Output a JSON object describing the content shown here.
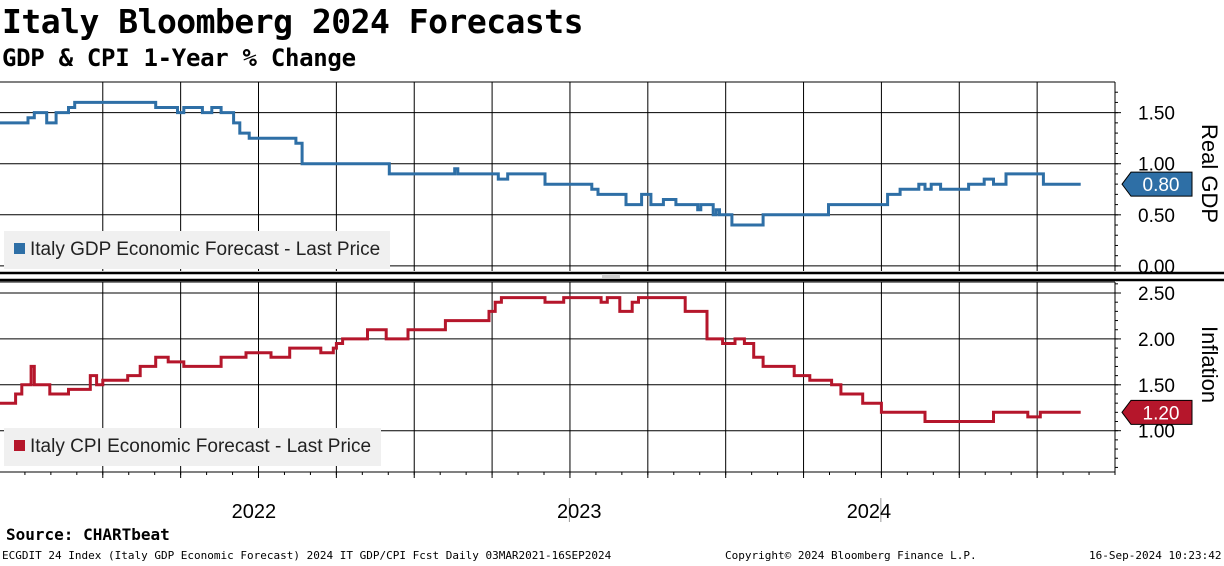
{
  "header": {
    "title": "Italy Bloomberg 2024 Forecasts",
    "subtitle": "GDP & CPI 1-Year % Change"
  },
  "source": "Source: CHARTbeat",
  "footer": {
    "left": "ECGDIT 24 Index (Italy GDP Economic Forecast) 2024 IT GDP/CPI Fcst  Daily 03MAR2021-16SEP2024",
    "center": "Copyright© 2024 Bloomberg Finance L.P.",
    "right": "16-Sep-2024 10:23:42"
  },
  "colors": {
    "gdp": "#2e6fa6",
    "cpi": "#b5162b"
  },
  "chart_data": [
    {
      "type": "line",
      "name": "gdp-panel",
      "axis_title": "Real GDP",
      "legend": "Italy GDP Economic Forecast - Last Price",
      "last_value_label": "0.80",
      "ylim": [
        -0.05,
        1.8
      ],
      "yticks": [
        0.0,
        0.5,
        1.0,
        1.5
      ],
      "ytick_labels": [
        "0.00",
        "0.50",
        "1.00",
        "1.50"
      ],
      "x_range": [
        2021.17,
        2024.75
      ],
      "x_labels": [
        {
          "label": "2022",
          "x": 2022.0
        },
        {
          "label": "2023",
          "x": 2023.0
        },
        {
          "label": "2024",
          "x": 2024.0
        }
      ],
      "series": [
        {
          "name": "Italy GDP Economic Forecast - Last Price",
          "x": [
            2021.17,
            2021.25,
            2021.26,
            2021.28,
            2021.32,
            2021.33,
            2021.35,
            2021.39,
            2021.41,
            2021.54,
            2021.64,
            2021.67,
            2021.72,
            2021.74,
            2021.76,
            2021.78,
            2021.82,
            2021.85,
            2021.88,
            2021.9,
            2021.92,
            2021.94,
            2021.97,
            2022.12,
            2022.14,
            2022.36,
            2022.4,
            2022.42,
            2022.6,
            2022.63,
            2022.64,
            2022.65,
            2022.68,
            2022.7,
            2022.77,
            2022.8,
            2022.85,
            2022.92,
            2022.93,
            2023.03,
            2023.07,
            2023.09,
            2023.13,
            2023.18,
            2023.23,
            2023.26,
            2023.27,
            2023.3,
            2023.34,
            2023.38,
            2023.41,
            2023.42,
            2023.46,
            2023.47,
            2023.48,
            2023.52,
            2023.62,
            2023.66,
            2023.74,
            2023.76,
            2023.78,
            2023.8,
            2023.83,
            2023.84,
            2023.9,
            2023.92,
            2024.02,
            2024.06,
            2024.12,
            2024.14,
            2024.16,
            2024.17,
            2024.19,
            2024.28,
            2024.3,
            2024.32,
            2024.33,
            2024.36,
            2024.4,
            2024.45,
            2024.49,
            2024.52,
            2024.64
          ],
          "values": [
            1.4,
            1.4,
            1.45,
            1.5,
            1.4,
            1.4,
            1.5,
            1.55,
            1.6,
            1.6,
            1.6,
            1.55,
            1.55,
            1.5,
            1.55,
            1.55,
            1.5,
            1.55,
            1.5,
            1.5,
            1.4,
            1.3,
            1.25,
            1.2,
            1.0,
            1.0,
            1.0,
            0.9,
            0.9,
            0.95,
            0.9,
            0.9,
            0.9,
            0.9,
            0.85,
            0.9,
            0.9,
            0.8,
            0.8,
            0.8,
            0.75,
            0.7,
            0.7,
            0.6,
            0.7,
            0.6,
            0.6,
            0.65,
            0.6,
            0.6,
            0.55,
            0.6,
            0.5,
            0.55,
            0.5,
            0.4,
            0.5,
            0.5,
            0.5,
            0.5,
            0.5,
            0.5,
            0.6,
            0.6,
            0.6,
            0.6,
            0.7,
            0.75,
            0.8,
            0.75,
            0.8,
            0.8,
            0.75,
            0.8,
            0.8,
            0.8,
            0.85,
            0.8,
            0.9,
            0.9,
            0.9,
            0.8,
            0.8
          ]
        }
      ]
    },
    {
      "type": "line",
      "name": "cpi-panel",
      "axis_title": "Inflation",
      "legend": "Italy CPI Economic Forecast - Last Price",
      "last_value_label": "1.20",
      "ylim": [
        0.55,
        2.62
      ],
      "yticks": [
        1.0,
        1.5,
        2.0,
        2.5
      ],
      "ytick_labels": [
        "1.00",
        "1.50",
        "2.00",
        "2.50"
      ],
      "x_range": [
        2021.17,
        2024.75
      ],
      "series": [
        {
          "name": "Italy CPI Economic Forecast - Last Price",
          "x": [
            2021.17,
            2021.22,
            2021.24,
            2021.27,
            2021.28,
            2021.32,
            2021.33,
            2021.36,
            2021.39,
            2021.46,
            2021.48,
            2021.5,
            2021.52,
            2021.57,
            2021.58,
            2021.62,
            2021.67,
            2021.71,
            2021.76,
            2021.78,
            2021.8,
            2021.88,
            2021.93,
            2021.96,
            2022.04,
            2022.06,
            2022.1,
            2022.18,
            2022.2,
            2022.24,
            2022.25,
            2022.27,
            2022.3,
            2022.35,
            2022.41,
            2022.44,
            2022.48,
            2022.6,
            2022.62,
            2022.7,
            2022.74,
            2022.76,
            2022.78,
            2022.8,
            2022.9,
            2022.92,
            2022.98,
            2023.06,
            2023.08,
            2023.1,
            2023.12,
            2023.16,
            2023.2,
            2023.22,
            2023.26,
            2023.34,
            2023.37,
            2023.44,
            2023.47,
            2023.49,
            2023.53,
            2023.56,
            2023.59,
            2023.62,
            2023.66,
            2023.68,
            2023.72,
            2023.74,
            2023.77,
            2023.84,
            2023.87,
            2023.94,
            2024.0,
            2024.03,
            2024.07,
            2024.1,
            2024.14,
            2024.18,
            2024.24,
            2024.28,
            2024.36,
            2024.43,
            2024.47,
            2024.51,
            2024.56,
            2024.58,
            2024.62,
            2024.64
          ],
          "values": [
            1.3,
            1.4,
            1.5,
            1.7,
            1.5,
            1.5,
            1.4,
            1.4,
            1.45,
            1.6,
            1.5,
            1.55,
            1.55,
            1.55,
            1.6,
            1.7,
            1.8,
            1.75,
            1.7,
            1.7,
            1.7,
            1.8,
            1.8,
            1.85,
            1.8,
            1.8,
            1.9,
            1.9,
            1.85,
            1.9,
            1.95,
            2.0,
            2.0,
            2.1,
            2.0,
            2.0,
            2.1,
            2.2,
            2.2,
            2.2,
            2.3,
            2.4,
            2.45,
            2.45,
            2.45,
            2.4,
            2.45,
            2.45,
            2.45,
            2.4,
            2.45,
            2.3,
            2.4,
            2.45,
            2.45,
            2.45,
            2.3,
            2.0,
            2.0,
            1.95,
            2.0,
            1.95,
            1.8,
            1.7,
            1.7,
            1.7,
            1.6,
            1.6,
            1.55,
            1.5,
            1.4,
            1.3,
            1.2,
            1.2,
            1.2,
            1.2,
            1.1,
            1.1,
            1.1,
            1.1,
            1.2,
            1.2,
            1.15,
            1.2,
            1.2,
            1.2,
            1.2,
            1.2
          ]
        }
      ]
    }
  ]
}
